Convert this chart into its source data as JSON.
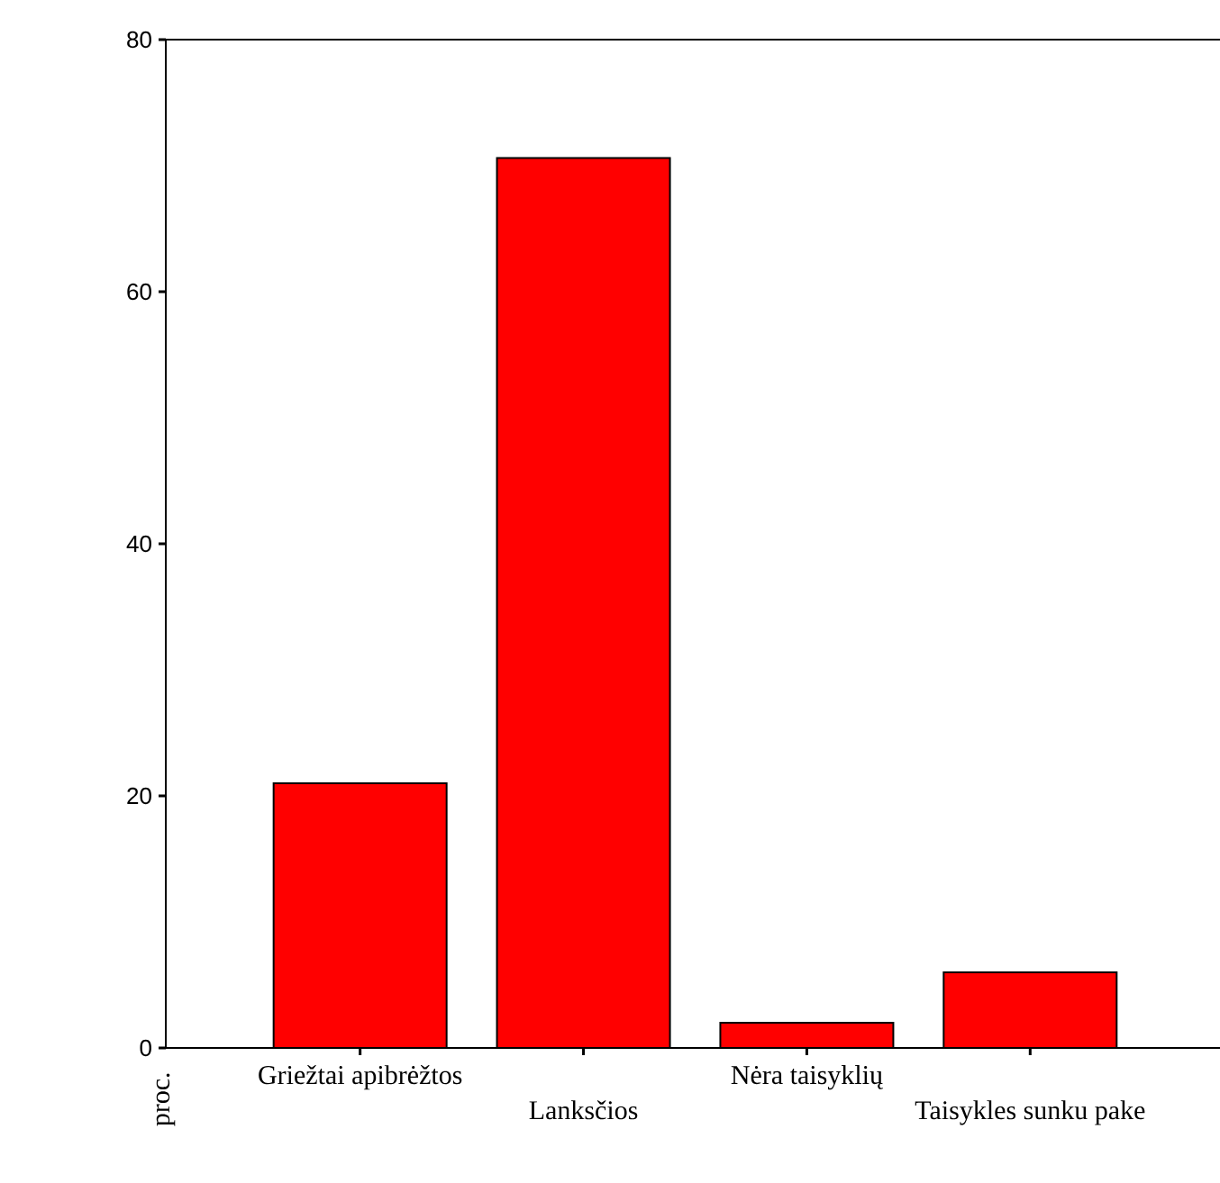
{
  "chart_data": {
    "type": "bar",
    "categories": [
      "Griežtai apibrėžtos",
      "Lanksčios",
      "Nėra taisyklių",
      "Taisykles sunku pake"
    ],
    "values": [
      21,
      70.6,
      2,
      6
    ],
    "color": "#ff0000",
    "ylabel": "proc.",
    "ylim": [
      0,
      80
    ],
    "yticks": [
      0,
      20,
      40,
      60,
      80
    ]
  }
}
